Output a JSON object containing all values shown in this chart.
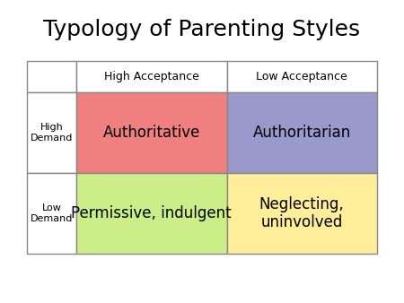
{
  "title": "Typology of Parenting Styles",
  "title_fontsize": 18,
  "title_color": "#000000",
  "background_color": "#ffffff",
  "col_headers": [
    "High Acceptance",
    "Low Acceptance"
  ],
  "row_headers": [
    "High\nDemand",
    "Low\nDemand"
  ],
  "cells": [
    [
      "Authoritative",
      "Authoritarian"
    ],
    [
      "Permissive, indulgent",
      "Neglecting,\nuninvolved"
    ]
  ],
  "cell_colors": [
    [
      "#f08080",
      "#9999cc"
    ],
    [
      "#ccee88",
      "#ffee99"
    ]
  ],
  "header_bg": "#ffffff",
  "border_color": "#888888",
  "cell_fontsize": 12,
  "header_fontsize": 9,
  "row_header_fontsize": 8,
  "cell_font_color": "#000000"
}
